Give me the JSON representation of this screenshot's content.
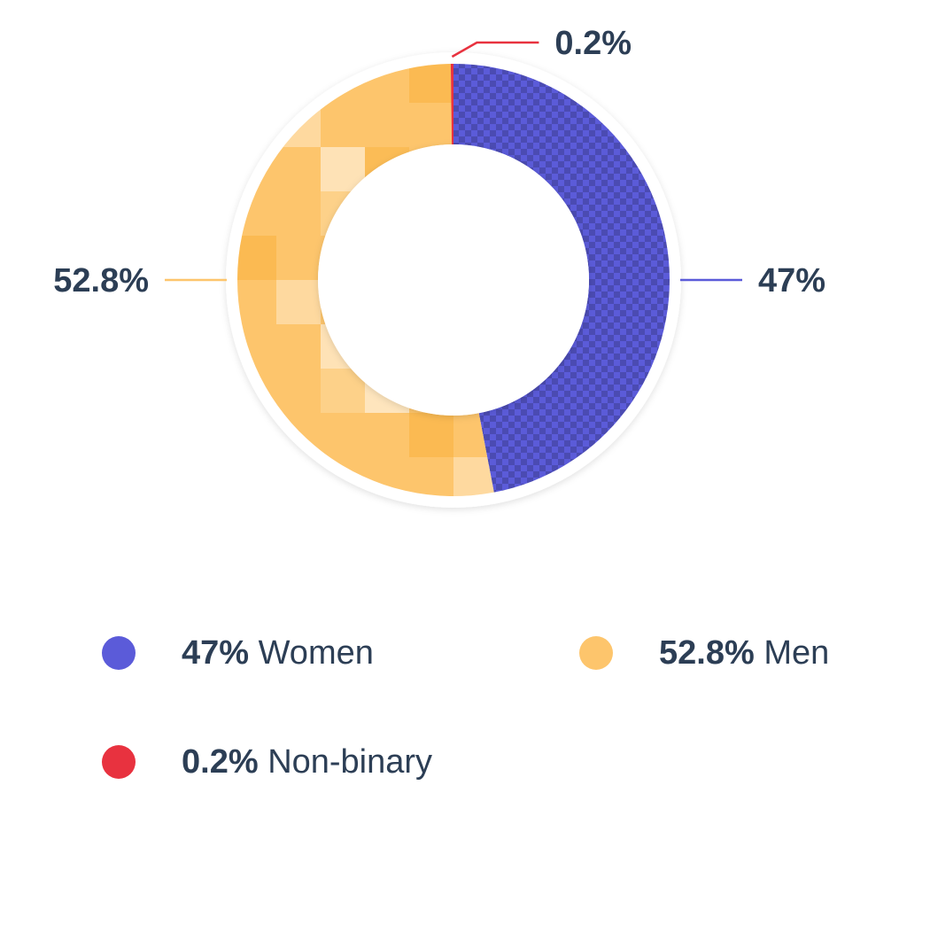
{
  "chart_data": {
    "type": "donut",
    "categories": [
      "Women",
      "Men",
      "Non-binary"
    ],
    "values": [
      47,
      52.8,
      0.2
    ],
    "value_labels": [
      "47%",
      "52.8%",
      "0.2%"
    ],
    "colors": [
      "#5b5bd9",
      "#fdc56c",
      "#e8323f"
    ],
    "legend": "bottom"
  }
}
